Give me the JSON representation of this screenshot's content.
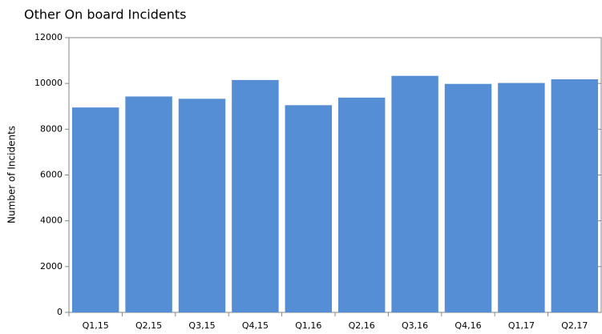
{
  "chart_data": {
    "type": "bar",
    "title": "Other On board Incidents",
    "y_label": "Number of Incidents",
    "categories": [
      "Q1,15",
      "Q2,15",
      "Q3,15",
      "Q4,15",
      "Q1,16",
      "Q2,16",
      "Q3,16",
      "Q4,16",
      "Q1,17",
      "Q2,17"
    ],
    "values": [
      8950,
      9430,
      9330,
      10150,
      9050,
      9380,
      10330,
      9980,
      10020,
      10180
    ],
    "color": "#558ed5",
    "ylim": [
      0,
      12000
    ],
    "yticks": [
      0,
      2000,
      4000,
      6000,
      8000,
      10000,
      12000
    ],
    "grid": false
  }
}
